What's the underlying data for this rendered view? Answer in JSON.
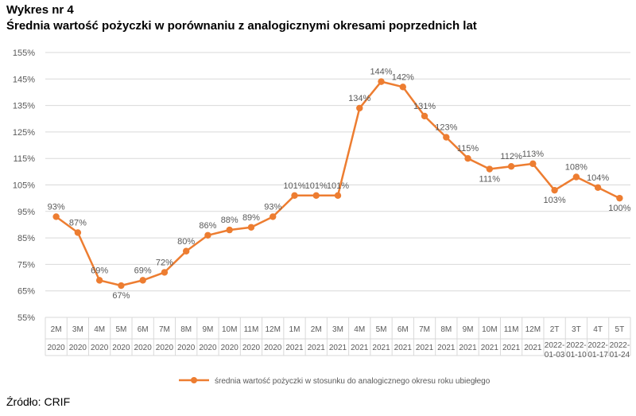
{
  "header": {
    "label": "Wykres nr 4",
    "title": "Średnia wartość pożyczki w porównaniu z analogicznymi okresami poprzednich lat"
  },
  "source": "Źródło: CRIF",
  "colors": {
    "series": "#ED7D31",
    "grid": "#D9D9D9",
    "axis_text": "#595959"
  },
  "chart_data": {
    "type": "line",
    "title": "",
    "xlabel": "",
    "ylabel": "",
    "ylim": [
      55,
      155
    ],
    "yticks": [
      "155%",
      "145%",
      "135%",
      "125%",
      "115%",
      "105%",
      "95%",
      "85%",
      "75%",
      "65%",
      "55%"
    ],
    "grid": true,
    "legend_position": "bottom",
    "categories": [
      [
        "2M",
        "2020"
      ],
      [
        "3M",
        "2020"
      ],
      [
        "4M",
        "2020"
      ],
      [
        "5M",
        "2020"
      ],
      [
        "6M",
        "2020"
      ],
      [
        "7M",
        "2020"
      ],
      [
        "8M",
        "2020"
      ],
      [
        "9M",
        "2020"
      ],
      [
        "10M",
        "2020"
      ],
      [
        "11M",
        "2020"
      ],
      [
        "12M",
        "2020"
      ],
      [
        "1M",
        "2021"
      ],
      [
        "2M",
        "2021"
      ],
      [
        "3M",
        "2021"
      ],
      [
        "4M",
        "2021"
      ],
      [
        "5M",
        "2021"
      ],
      [
        "6M",
        "2021"
      ],
      [
        "7M",
        "2021"
      ],
      [
        "8M",
        "2021"
      ],
      [
        "9M",
        "2021"
      ],
      [
        "10M",
        "2021"
      ],
      [
        "11M",
        "2021"
      ],
      [
        "12M",
        "2021"
      ],
      [
        "2T",
        "2022-01-03"
      ],
      [
        "3T",
        "2022-01-10"
      ],
      [
        "4T",
        "2022-01-17"
      ],
      [
        "5T",
        "2022-01-24"
      ]
    ],
    "series": [
      {
        "name": "średnia wartość pożyczki w stosunku do analogicznego okresu roku ubiegłego",
        "values": [
          93,
          87,
          69,
          67,
          69,
          72,
          80,
          86,
          88,
          89,
          93,
          101,
          101,
          101,
          134,
          144,
          142,
          131,
          123,
          115,
          111,
          112,
          113,
          103,
          108,
          104,
          100
        ],
        "labels": [
          "93%",
          "87%",
          "69%",
          "67%",
          "69%",
          "72%",
          "80%",
          "86%",
          "88%",
          "89%",
          "93%",
          "101%",
          "101%",
          "101%",
          "134%",
          "144%",
          "142%",
          "131%",
          "123%",
          "115%",
          "111%",
          "112%",
          "113%",
          "103%",
          "108%",
          "104%",
          "100%"
        ]
      }
    ]
  }
}
